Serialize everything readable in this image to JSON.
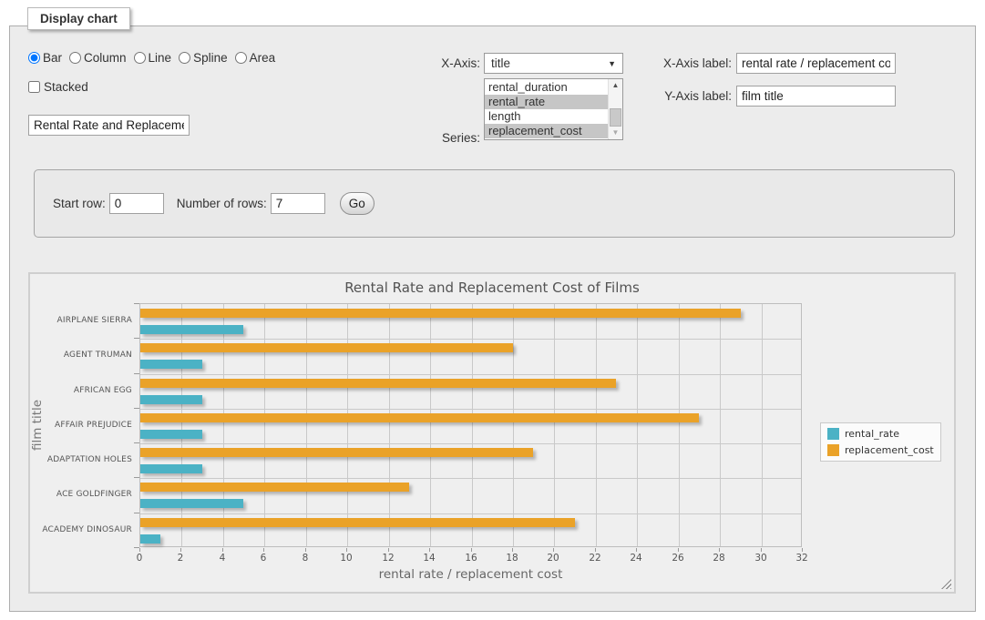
{
  "panel": {
    "legend": "Display chart"
  },
  "chart_type": {
    "group": "charttype",
    "options": [
      {
        "label": "Bar",
        "checked": true
      },
      {
        "label": "Column",
        "checked": false
      },
      {
        "label": "Line",
        "checked": false
      },
      {
        "label": "Spline",
        "checked": false
      },
      {
        "label": "Area",
        "checked": false
      }
    ]
  },
  "stacked": {
    "label": "Stacked",
    "checked": false
  },
  "title_input": {
    "value": "Rental Rate and Replacemer"
  },
  "x_axis": {
    "label": "X-Axis:",
    "selected": "title"
  },
  "series_picker": {
    "label": "Series:",
    "options": [
      {
        "label": "rental_duration",
        "selected": false
      },
      {
        "label": "rental_rate",
        "selected": true
      },
      {
        "label": "length",
        "selected": false
      },
      {
        "label": "replacement_cost",
        "selected": true
      }
    ]
  },
  "axis_labels": {
    "x_label": "X-Axis label:",
    "x_value": "rental rate / replacement cost",
    "y_label": "Y-Axis label:",
    "y_value": "film title"
  },
  "rows_form": {
    "start_label": "Start row:",
    "start_value": "0",
    "count_label": "Number of rows:",
    "count_value": "7",
    "go": "Go"
  },
  "icons": {
    "dropdown": "▼",
    "scroll_up": "▲",
    "scroll_down": "▼"
  },
  "chart_data": {
    "type": "bar",
    "orientation": "horizontal",
    "title": "Rental Rate and Replacement Cost of Films",
    "xlabel": "rental rate / replacement cost",
    "ylabel": "film title",
    "categories": [
      "AIRPLANE SIERRA",
      "AGENT TRUMAN",
      "AFRICAN EGG",
      "AFFAIR PREJUDICE",
      "ADAPTATION HOLES",
      "ACE GOLDFINGER",
      "ACADEMY DINOSAUR"
    ],
    "series": [
      {
        "name": "rental_rate",
        "color": "#4bb2c5",
        "values": [
          4.99,
          2.99,
          2.99,
          2.99,
          2.99,
          4.99,
          0.99
        ]
      },
      {
        "name": "replacement_cost",
        "color": "#eaa228",
        "values": [
          28.99,
          17.99,
          22.99,
          26.99,
          18.99,
          12.99,
          20.99
        ]
      }
    ],
    "xlim": [
      0,
      32
    ],
    "xtick_step": 2,
    "grid": true,
    "legend_position": "right"
  }
}
